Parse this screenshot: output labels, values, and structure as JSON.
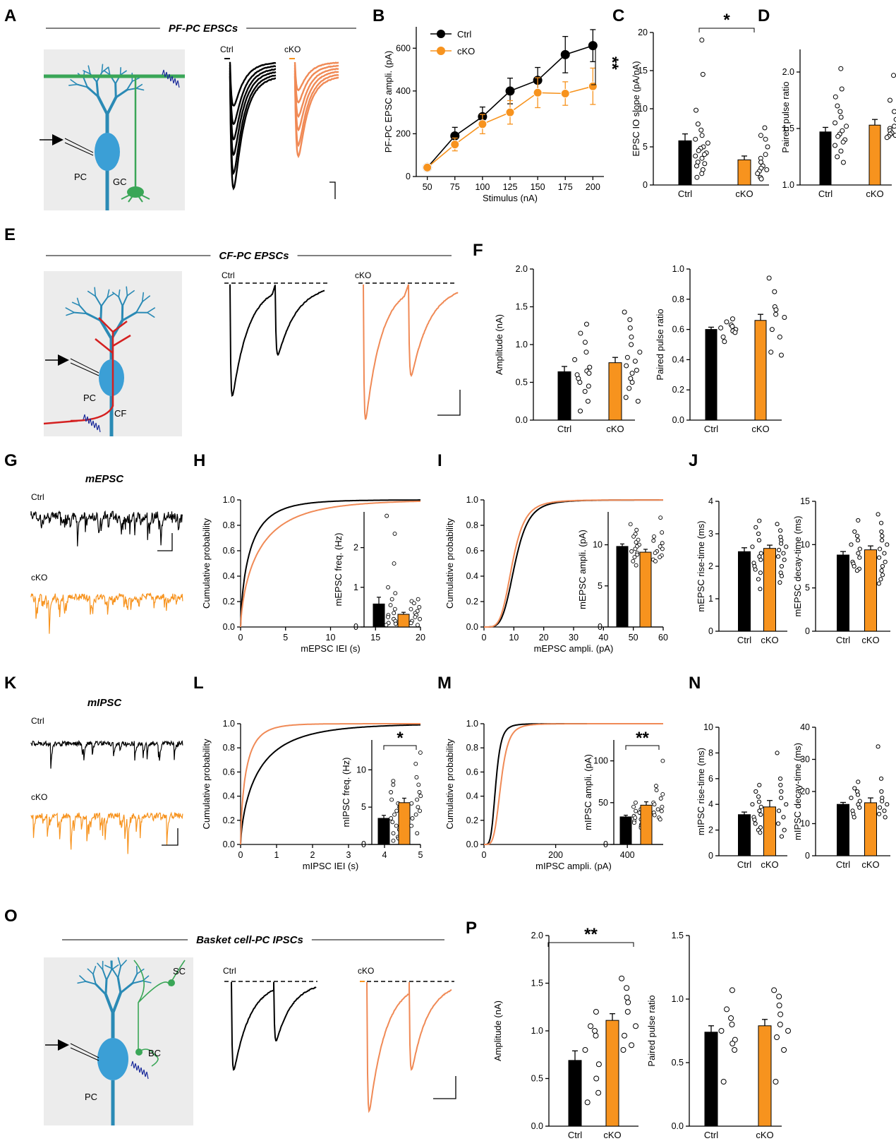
{
  "colors": {
    "ctrl": "#000000",
    "cko": "#f7931e",
    "cko_trace": "#f08a56",
    "dendrite": "#2a8ab5",
    "soma": "#3b9fd6",
    "gc": "#3aa657",
    "cf": "#d42020",
    "bg": "#ececec"
  },
  "panels": {
    "A": "A",
    "B": "B",
    "C": "C",
    "D": "D",
    "E": "E",
    "F": "F",
    "G": "G",
    "H": "H",
    "I": "I",
    "J": "J",
    "K": "K",
    "L": "L",
    "M": "M",
    "N": "N",
    "O": "O",
    "P": "P"
  },
  "headers": {
    "pf": "PF-PC EPSCs",
    "cf": "CF-PC EPSCs",
    "mepsc": "mEPSC",
    "mipsc": "mIPSC",
    "basket": "Basket cell-PC IPSCs"
  },
  "cells": {
    "pc": "PC",
    "gc": "GC",
    "cf": "CF",
    "sc": "SC",
    "bc": "BC"
  },
  "groups": {
    "ctrl": "Ctrl",
    "cko": "cKO"
  },
  "sig": {
    "one": "*",
    "two": "**"
  },
  "chart_data": [
    {
      "id": "B",
      "type": "line",
      "xlabel": "Stimulus (nA)",
      "ylabel": "PF-PC EPSC ampli. (pA)",
      "x": [
        50,
        75,
        100,
        125,
        150,
        175,
        200
      ],
      "xlim": [
        40,
        210
      ],
      "ylim": [
        0,
        700
      ],
      "yticks": [
        0,
        200,
        400,
        600
      ],
      "series": [
        {
          "name": "Ctrl",
          "values": [
            42,
            190,
            280,
            400,
            450,
            570,
            612
          ],
          "err": [
            8,
            40,
            45,
            60,
            60,
            85,
            75
          ]
        },
        {
          "name": "cKO",
          "values": [
            42,
            150,
            245,
            300,
            392,
            388,
            422
          ],
          "err": [
            8,
            30,
            45,
            55,
            70,
            55,
            85
          ]
        }
      ],
      "legend": "top-left",
      "annotation": "**"
    },
    {
      "id": "C",
      "type": "bar",
      "ylabel": "EPSC IO slope (pA/nA)",
      "categories": [
        "Ctrl",
        "cKO"
      ],
      "values": [
        5.8,
        3.3
      ],
      "err": [
        0.9,
        0.5
      ],
      "ylim": [
        0,
        20
      ],
      "yticks": [
        0,
        5,
        10,
        15,
        20
      ],
      "annotation": "*",
      "points": [
        [
          19,
          14.5,
          9.8,
          8,
          7.2,
          6.5,
          6,
          5.5,
          5,
          4.8,
          4.5,
          4.2,
          4,
          3.8,
          3.5,
          3,
          2.8,
          2.5,
          2,
          1.5,
          1
        ],
        [
          7.5,
          6.5,
          6,
          5,
          4,
          3.5,
          3,
          2.5,
          2.2,
          2,
          1.8,
          1.5,
          1,
          0.8
        ]
      ]
    },
    {
      "id": "D",
      "type": "bar",
      "ylabel": "Paired pulse ratio",
      "categories": [
        "Ctrl",
        "cKO"
      ],
      "values": [
        1.47,
        1.53
      ],
      "err": [
        0.04,
        0.05
      ],
      "ylim": [
        1.0,
        2.2
      ],
      "yticks": [
        1.0,
        1.5,
        2.0
      ],
      "points": [
        [
          2.03,
          1.85,
          1.78,
          1.7,
          1.65,
          1.6,
          1.55,
          1.52,
          1.48,
          1.45,
          1.43,
          1.4,
          1.38,
          1.35,
          1.3,
          1.25,
          1.2
        ],
        [
          1.97,
          1.75,
          1.65,
          1.58,
          1.52,
          1.5,
          1.48,
          1.46,
          1.45,
          1.44,
          1.43,
          1.42
        ]
      ]
    },
    {
      "id": "F1",
      "type": "bar",
      "ylabel": "Amplitude (nA)",
      "categories": [
        "Ctrl",
        "cKO"
      ],
      "values": [
        0.64,
        0.76
      ],
      "err": [
        0.07,
        0.07
      ],
      "ylim": [
        0,
        2.0
      ],
      "yticks": [
        0,
        0.5,
        1.0,
        1.5,
        2.0
      ],
      "points": [
        [
          1.27,
          1.15,
          1.03,
          0.9,
          0.8,
          0.7,
          0.65,
          0.62,
          0.6,
          0.55,
          0.5,
          0.45,
          0.38,
          0.25,
          0.12
        ],
        [
          1.43,
          1.33,
          1.22,
          1.1,
          1.0,
          0.9,
          0.83,
          0.78,
          0.72,
          0.66,
          0.62,
          0.55,
          0.5,
          0.42,
          0.3,
          0.25
        ]
      ]
    },
    {
      "id": "F2",
      "type": "bar",
      "ylabel": "Paired pulse ratio",
      "categories": [
        "Ctrl",
        "cKO"
      ],
      "values": [
        0.6,
        0.66
      ],
      "err": [
        0.015,
        0.04
      ],
      "ylim": [
        0,
        1.0
      ],
      "yticks": [
        0,
        0.2,
        0.4,
        0.6,
        0.8,
        1.0
      ],
      "points": [
        [
          0.67,
          0.65,
          0.63,
          0.62,
          0.61,
          0.6,
          0.59,
          0.58,
          0.55,
          0.52
        ],
        [
          0.94,
          0.85,
          0.75,
          0.73,
          0.7,
          0.68,
          0.6,
          0.55,
          0.45,
          0.43
        ]
      ]
    },
    {
      "id": "H",
      "type": "line",
      "xlabel": "mEPSC IEI (s)",
      "ylabel": "Cumulative probability",
      "xlim": [
        0,
        20
      ],
      "ylim": [
        0,
        1.0
      ],
      "xticks": [
        0,
        5,
        10,
        15,
        20
      ],
      "yticks": [
        0,
        0.2,
        0.4,
        0.6,
        0.8,
        1.0
      ],
      "series": [
        {
          "name": "Ctrl",
          "tau": 1.2
        },
        {
          "name": "cKO",
          "tau": 2.3
        }
      ],
      "inset": {
        "ylabel": "mEPSC freq. (Hz)",
        "values": [
          0.58,
          0.32
        ],
        "err": [
          0.17,
          0.05
        ],
        "ylim": [
          0,
          2.9
        ],
        "yticks": [
          0,
          1,
          2
        ],
        "points": [
          [
            2.8,
            2.35,
            1.6,
            1.0,
            0.85,
            0.7,
            0.55,
            0.45,
            0.35,
            0.3,
            0.25,
            0.2,
            0.15,
            0.1,
            0.08,
            0.05
          ],
          [
            0.7,
            0.65,
            0.6,
            0.5,
            0.45,
            0.4,
            0.35,
            0.3,
            0.25,
            0.2,
            0.15,
            0.1,
            0.05
          ]
        ]
      }
    },
    {
      "id": "I",
      "type": "line",
      "xlabel": "mEPSC ampli. (pA)",
      "ylabel": "Cumulative probability",
      "xlim": [
        0,
        60
      ],
      "ylim": [
        0,
        1.0
      ],
      "xticks": [
        0,
        10,
        20,
        30,
        40,
        50,
        60
      ],
      "yticks": [
        0,
        0.2,
        0.4,
        0.6,
        0.8,
        1.0
      ],
      "series": [
        {
          "name": "Ctrl",
          "median": 10.4
        },
        {
          "name": "cKO",
          "median": 9.5
        }
      ],
      "inset": {
        "ylabel": "mEPSC ampli. (pA)",
        "values": [
          9.8,
          9.1
        ],
        "err": [
          0.3,
          0.35
        ],
        "ylim": [
          0,
          14
        ],
        "yticks": [
          0,
          5,
          10
        ],
        "points": [
          [
            12.5,
            11.8,
            11.3,
            11,
            10.6,
            10.3,
            10,
            9.8,
            9.5,
            9.2,
            9,
            8.8,
            8.5,
            8,
            7.5
          ],
          [
            13.3,
            11.5,
            11,
            10.5,
            10.2,
            9.8,
            9.5,
            9.2,
            9,
            8.7,
            8.5,
            8.2,
            8
          ]
        ]
      }
    },
    {
      "id": "J1",
      "type": "bar",
      "ylabel": "mEPSC rise-time (ms)",
      "categories": [
        "Ctrl",
        "cKO"
      ],
      "values": [
        2.45,
        2.55
      ],
      "err": [
        0.12,
        0.1
      ],
      "ylim": [
        0,
        4.0
      ],
      "yticks": [
        0,
        1,
        2,
        3,
        4
      ],
      "points": [
        [
          3.4,
          3.2,
          3.0,
          2.8,
          2.6,
          2.4,
          2.3,
          2.2,
          2.1,
          2.0,
          1.9,
          1.8,
          1.6,
          1.3
        ],
        [
          3.3,
          3.1,
          2.9,
          2.8,
          2.7,
          2.6,
          2.5,
          2.4,
          2.3,
          2.2,
          2.0,
          1.8,
          1.7,
          1.5
        ]
      ]
    },
    {
      "id": "J2",
      "type": "bar",
      "ylabel": "mEPSC decay-time (ms)",
      "categories": [
        "Ctrl",
        "cKO"
      ],
      "values": [
        8.8,
        9.4
      ],
      "err": [
        0.4,
        0.45
      ],
      "ylim": [
        0,
        15
      ],
      "yticks": [
        0,
        5,
        10,
        15
      ],
      "points": [
        [
          12.8,
          11.5,
          11,
          10.5,
          10,
          9.5,
          9,
          8.5,
          8,
          7.8,
          7.5,
          7.2,
          7
        ],
        [
          13.5,
          12.5,
          11.5,
          11,
          10.5,
          10,
          9.5,
          9,
          8.5,
          8,
          7.5,
          7,
          6.5,
          6,
          5.5
        ]
      ]
    },
    {
      "id": "L",
      "type": "line",
      "xlabel": "mIPSC IEI (s)",
      "ylabel": "Cumulative probability",
      "xlim": [
        0,
        5
      ],
      "ylim": [
        0,
        1.0
      ],
      "xticks": [
        0,
        1,
        2,
        3,
        4,
        5
      ],
      "yticks": [
        0,
        0.2,
        0.4,
        0.6,
        0.8,
        1.0
      ],
      "series": [
        {
          "name": "Ctrl",
          "tau": 0.55
        },
        {
          "name": "cKO",
          "tau": 0.17
        }
      ],
      "inset": {
        "ylabel": "mIPSC freq. (Hz)",
        "values": [
          3.5,
          5.6
        ],
        "err": [
          0.4,
          0.6
        ],
        "ylim": [
          0,
          14
        ],
        "yticks": [
          0,
          5,
          10
        ],
        "annotation": "*",
        "points": [
          [
            8.5,
            8,
            7,
            6,
            5.5,
            5,
            4.5,
            4,
            3.5,
            3,
            2.5,
            2,
            1.5,
            1,
            0.8,
            0.5
          ],
          [
            12.3,
            10.8,
            9,
            8,
            7,
            6.5,
            6,
            5.5,
            5,
            4.5,
            4,
            3.5,
            2.5,
            1.5
          ]
        ]
      }
    },
    {
      "id": "M",
      "type": "line",
      "xlabel": "mIPSC ampli. (pA)",
      "ylabel": "Cumulative probability",
      "xlim": [
        0,
        500
      ],
      "ylim": [
        0,
        1.0
      ],
      "xticks": [
        0,
        200,
        400
      ],
      "yticks": [
        0,
        0.2,
        0.4,
        0.6,
        0.8,
        1.0
      ],
      "series": [
        {
          "name": "Ctrl",
          "median": 33
        },
        {
          "name": "cKO",
          "median": 47
        }
      ],
      "inset": {
        "ylabel": "mIPSC ampli. (pA)",
        "values": [
          33,
          47
        ],
        "err": [
          2,
          4
        ],
        "ylim": [
          0,
          125
        ],
        "yticks": [
          0,
          50,
          100
        ],
        "annotation": "**",
        "points": [
          [
            50,
            45,
            42,
            40,
            38,
            36,
            34,
            32,
            30,
            28,
            26,
            24,
            22,
            20
          ],
          [
            100,
            70,
            65,
            60,
            55,
            50,
            48,
            45,
            42,
            40,
            38,
            35,
            32,
            30
          ]
        ]
      }
    },
    {
      "id": "N1",
      "type": "bar",
      "ylabel": "mIPSC rise-time (ms)",
      "categories": [
        "Ctrl",
        "cKO"
      ],
      "values": [
        3.2,
        3.8
      ],
      "err": [
        0.2,
        0.5
      ],
      "ylim": [
        0,
        10
      ],
      "yticks": [
        0,
        2,
        4,
        6,
        8,
        10
      ],
      "points": [
        [
          5.5,
          5,
          4.6,
          4.2,
          4,
          3.8,
          3.5,
          3.2,
          3,
          2.8,
          2.5,
          2.2,
          2,
          1.8
        ],
        [
          8,
          6,
          5.5,
          5,
          4.5,
          4,
          3.5,
          3,
          2.5,
          2,
          1.5
        ]
      ]
    },
    {
      "id": "N2",
      "type": "bar",
      "ylabel": "mIPSC decay-time (ms)",
      "categories": [
        "Ctrl",
        "cKO"
      ],
      "values": [
        16,
        16.5
      ],
      "err": [
        0.6,
        1.5
      ],
      "ylim": [
        0,
        40
      ],
      "yticks": [
        0,
        10,
        20,
        30,
        40
      ],
      "points": [
        [
          23,
          21,
          20,
          19,
          18,
          17,
          16,
          15,
          14,
          13,
          12
        ],
        [
          34,
          24,
          20,
          18,
          17,
          16,
          15,
          14,
          13,
          12
        ]
      ]
    },
    {
      "id": "P1",
      "type": "bar",
      "ylabel": "Amplitude (nA)",
      "categories": [
        "Ctrl",
        "cKO"
      ],
      "values": [
        0.69,
        1.11
      ],
      "err": [
        0.1,
        0.07
      ],
      "ylim": [
        0,
        2.0
      ],
      "yticks": [
        0,
        0.5,
        1.0,
        1.5,
        2.0
      ],
      "annotation": "**",
      "points": [
        [
          1.2,
          1.05,
          1.0,
          0.95,
          0.8,
          0.65,
          0.5,
          0.35,
          0.25
        ],
        [
          1.55,
          1.45,
          1.35,
          1.3,
          1.2,
          1.05,
          0.95,
          0.85,
          0.8
        ]
      ]
    },
    {
      "id": "P2",
      "type": "bar",
      "ylabel": "Paired pulse ratio",
      "categories": [
        "Ctrl",
        "cKO"
      ],
      "values": [
        0.74,
        0.79
      ],
      "err": [
        0.05,
        0.05
      ],
      "ylim": [
        0,
        1.5
      ],
      "yticks": [
        0,
        0.5,
        1.0,
        1.5
      ],
      "points": [
        [
          1.07,
          0.92,
          0.85,
          0.8,
          0.75,
          0.68,
          0.65,
          0.6,
          0.35
        ],
        [
          1.07,
          1.02,
          0.95,
          0.88,
          0.8,
          0.75,
          0.7,
          0.6,
          0.35
        ]
      ]
    }
  ]
}
